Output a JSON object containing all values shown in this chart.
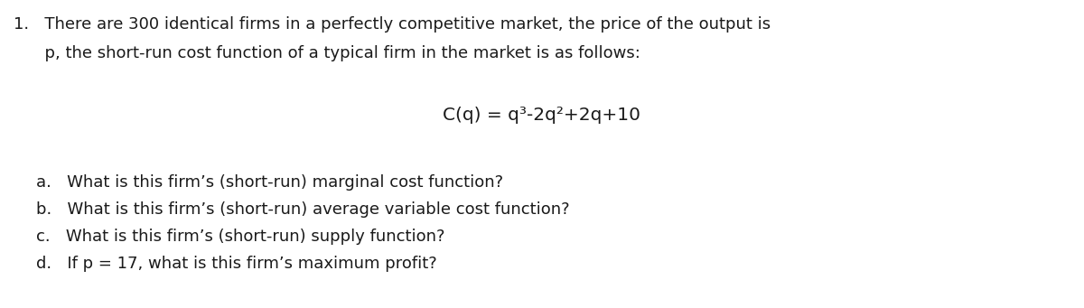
{
  "background_color": "#ffffff",
  "figsize": [
    12.0,
    3.41
  ],
  "dpi": 100,
  "line1": "1.   There are 300 identical firms in a perfectly competitive market, the price of the output is",
  "line2": "      p, the short-run cost function of a typical firm in the market is as follows:",
  "line_eq": "C(q) = q³-2q²+2q+10",
  "line_a": "a.   What is this firm’s (short-run) marginal cost function?",
  "line_b": "b.   What is this firm’s (short-run) average variable cost function?",
  "line_c": "c.   What is this firm’s (short-run) supply function?",
  "line_d": "d.   If p = 17, what is this firm’s maximum profit?",
  "fontsize_main": 13.0,
  "fontsize_eq": 14.5,
  "text_color": "#1a1a1a",
  "font_family": "DejaVu Sans"
}
